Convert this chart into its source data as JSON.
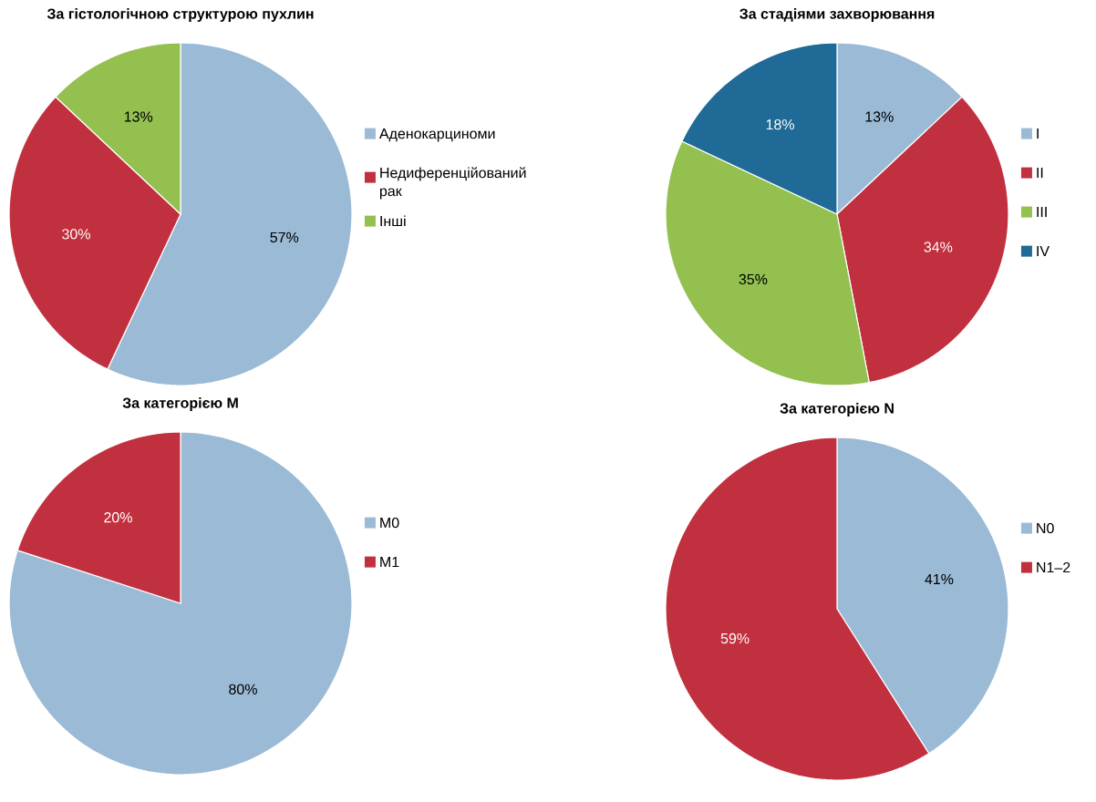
{
  "chart_data": [
    {
      "type": "pie",
      "title": "За гістологічною структурою пухлин",
      "categories": [
        "Аденокарциноми",
        "Недиференційований рак",
        "Інші"
      ],
      "values": [
        57,
        30,
        13
      ],
      "colors": [
        "#9bbad6",
        "#c1303f",
        "#93c04f"
      ],
      "value_labels": [
        "57%",
        "30%",
        "13%"
      ],
      "legend": "right"
    },
    {
      "type": "pie",
      "title": "За стадіями захворювання",
      "categories": [
        "I",
        "II",
        "III",
        "IV"
      ],
      "values": [
        13,
        34,
        35,
        18
      ],
      "colors": [
        "#9bbad6",
        "#c1303f",
        "#93c04f",
        "#1f6a96"
      ],
      "value_labels": [
        "13%",
        "34%",
        "35%",
        "18%"
      ],
      "legend": "right"
    },
    {
      "type": "pie",
      "title": "За категорією M",
      "categories": [
        "M0",
        "M1"
      ],
      "values": [
        80,
        20
      ],
      "colors": [
        "#9bbad6",
        "#c1303f"
      ],
      "value_labels": [
        "80%",
        "20%"
      ],
      "legend": "right"
    },
    {
      "type": "pie",
      "title": "За категорією N",
      "categories": [
        "N0",
        "N1–2"
      ],
      "values": [
        41,
        59
      ],
      "colors": [
        "#9bbad6",
        "#c1303f"
      ],
      "value_labels": [
        "41%",
        "59%"
      ],
      "legend": "right"
    }
  ]
}
